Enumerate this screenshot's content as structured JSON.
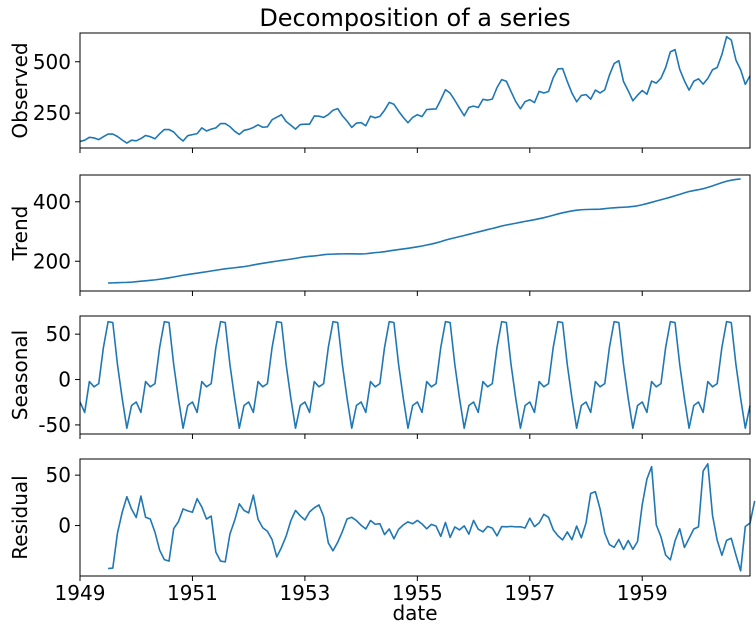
{
  "chart_data": {
    "type": "line",
    "title": "Decomposition of a series",
    "xlabel": "date",
    "x_start": "1949-01",
    "frequency": "monthly",
    "xlim": [
      "1949-01",
      "1960-12"
    ],
    "x_ticks": [
      "1949",
      "1951",
      "1953",
      "1955",
      "1957",
      "1959"
    ],
    "line_color": "#1f77b4",
    "grid": false,
    "panels": [
      {
        "ylabel": "Observed",
        "ylim": [
          80,
          640
        ],
        "yticks": [
          250,
          500
        ],
        "values": [
          112,
          118,
          132,
          129,
          121,
          135,
          148,
          148,
          136,
          119,
          104,
          118,
          115,
          126,
          141,
          135,
          125,
          149,
          170,
          170,
          158,
          133,
          114,
          140,
          145,
          150,
          178,
          163,
          172,
          178,
          199,
          199,
          184,
          162,
          146,
          166,
          171,
          180,
          193,
          181,
          183,
          218,
          230,
          242,
          209,
          191,
          172,
          194,
          196,
          196,
          236,
          235,
          229,
          243,
          264,
          272,
          237,
          211,
          180,
          201,
          204,
          188,
          235,
          227,
          234,
          264,
          302,
          293,
          259,
          229,
          203,
          229,
          242,
          233,
          267,
          269,
          270,
          315,
          364,
          347,
          312,
          274,
          237,
          278,
          284,
          277,
          317,
          313,
          318,
          374,
          413,
          405,
          355,
          306,
          271,
          306,
          315,
          301,
          356,
          348,
          355,
          422,
          465,
          467,
          404,
          347,
          305,
          336,
          340,
          318,
          362,
          348,
          363,
          435,
          491,
          505,
          404,
          359,
          310,
          337,
          360,
          342,
          406,
          396,
          420,
          472,
          548,
          559,
          463,
          407,
          362,
          405,
          417,
          391,
          419,
          461,
          472,
          535,
          622,
          606,
          508,
          461,
          390,
          432
        ]
      },
      {
        "ylabel": "Trend",
        "ylim": [
          100,
          490
        ],
        "yticks": [
          200,
          400
        ],
        "start_index": 6,
        "values": [
          126.8,
          127.3,
          127.9,
          128.6,
          129.0,
          129.8,
          131.3,
          133.1,
          134.4,
          135.9,
          137.4,
          139.5,
          141.9,
          144.3,
          147.0,
          150.0,
          152.9,
          155.2,
          157.7,
          160.0,
          162.4,
          164.8,
          167.3,
          169.8,
          172.3,
          174.5,
          176.5,
          178.2,
          179.9,
          181.9,
          184.5,
          187.5,
          190.5,
          193.2,
          195.7,
          198.0,
          200.4,
          202.7,
          205.0,
          207.1,
          209.7,
          212.6,
          215.0,
          216.6,
          217.9,
          219.8,
          222.2,
          223.6,
          224.0,
          224.5,
          224.8,
          225.0,
          224.9,
          224.6,
          224.5,
          225.2,
          227.1,
          229.0,
          230.3,
          232.3,
          234.8,
          237.1,
          239.3,
          241.3,
          243.6,
          246.0,
          248.5,
          251.3,
          254.6,
          257.8,
          261.6,
          266.1,
          271.1,
          275.3,
          279.0,
          282.8,
          286.5,
          290.6,
          294.6,
          298.6,
          302.4,
          306.5,
          310.2,
          314.1,
          318.6,
          321.9,
          324.8,
          327.8,
          330.9,
          334.0,
          336.8,
          339.8,
          343.0,
          346.5,
          350.4,
          354.8,
          359.0,
          362.8,
          366.3,
          369.2,
          371.7,
          373.2,
          374.0,
          374.4,
          374.7,
          375.2,
          376.8,
          378.6,
          379.8,
          380.8,
          381.6,
          382.6,
          384.2,
          386.5,
          390.0,
          393.9,
          398.2,
          402.5,
          406.9,
          411.0,
          415.4,
          420.3,
          425.0,
          429.8,
          434.5,
          437.7,
          440.5,
          443.9,
          448.4,
          453.5,
          458.9,
          464.4,
          469.0,
          472.5,
          475.1,
          476.8
        ]
      },
      {
        "ylabel": "Seasonal",
        "ylim": [
          -60,
          70
        ],
        "yticks": [
          -50,
          0,
          50
        ],
        "values": [
          -24.7,
          -36.2,
          -2.2,
          -8.0,
          -4.5,
          35.4,
          63.8,
          62.8,
          16.5,
          -20.6,
          -53.6,
          -28.6,
          -24.7,
          -36.2,
          -2.2,
          -8.0,
          -4.5,
          35.4,
          63.8,
          62.8,
          16.5,
          -20.6,
          -53.6,
          -28.6,
          -24.7,
          -36.2,
          -2.2,
          -8.0,
          -4.5,
          35.4,
          63.8,
          62.8,
          16.5,
          -20.6,
          -53.6,
          -28.6,
          -24.7,
          -36.2,
          -2.2,
          -8.0,
          -4.5,
          35.4,
          63.8,
          62.8,
          16.5,
          -20.6,
          -53.6,
          -28.6,
          -24.7,
          -36.2,
          -2.2,
          -8.0,
          -4.5,
          35.4,
          63.8,
          62.8,
          16.5,
          -20.6,
          -53.6,
          -28.6,
          -24.7,
          -36.2,
          -2.2,
          -8.0,
          -4.5,
          35.4,
          63.8,
          62.8,
          16.5,
          -20.6,
          -53.6,
          -28.6,
          -24.7,
          -36.2,
          -2.2,
          -8.0,
          -4.5,
          35.4,
          63.8,
          62.8,
          16.5,
          -20.6,
          -53.6,
          -28.6,
          -24.7,
          -36.2,
          -2.2,
          -8.0,
          -4.5,
          35.4,
          63.8,
          62.8,
          16.5,
          -20.6,
          -53.6,
          -28.6,
          -24.7,
          -36.2,
          -2.2,
          -8.0,
          -4.5,
          35.4,
          63.8,
          62.8,
          16.5,
          -20.6,
          -53.6,
          -28.6,
          -24.7,
          -36.2,
          -2.2,
          -8.0,
          -4.5,
          35.4,
          63.8,
          62.8,
          16.5,
          -20.6,
          -53.6,
          -28.6,
          -24.7,
          -36.2,
          -2.2,
          -8.0,
          -4.5,
          35.4,
          63.8,
          62.8,
          16.5,
          -20.6,
          -53.6,
          -28.6,
          -24.7,
          -36.2,
          -2.2,
          -8.0,
          -4.5,
          35.4,
          63.8,
          62.8,
          16.5,
          -20.6,
          -53.6,
          -28.6
        ]
      },
      {
        "ylabel": "Residual",
        "ylim": [
          -50,
          66
        ],
        "yticks": [
          0,
          50
        ],
        "start_index": 6,
        "values": [
          -42.6,
          -42.1,
          -7.4,
          13.0,
          28.6,
          16.4,
          8.0,
          29.3,
          8.3,
          6.5,
          -6.6,
          -24.4,
          -33.8,
          -35.3,
          -3.0,
          3.8,
          16.5,
          14.6,
          13.2,
          26.6,
          18.4,
          6.4,
          9.4,
          -26.3,
          -35.2,
          -36.0,
          -8.4,
          5.0,
          21.6,
          15.0,
          12.6,
          30.2,
          6.3,
          -2.2,
          -5.6,
          -14.0,
          -31.1,
          -21.7,
          -10.4,
          4.8,
          15.0,
          9.8,
          5.6,
          13.6,
          17.6,
          20.5,
          9.0,
          -17.2,
          -25.0,
          -16.6,
          -5.9,
          6.5,
          8.2,
          5.0,
          0.3,
          -3.4,
          5.0,
          1.3,
          1.9,
          -8.9,
          -3.4,
          -13.1,
          -3.7,
          0.7,
          3.7,
          1.8,
          5.1,
          1.6,
          -3.2,
          1.2,
          -0.6,
          -10.7,
          3.1,
          -11.7,
          -1.4,
          -4.3,
          -0.3,
          -8.5,
          5.1,
          -3.6,
          -6.2,
          -0.8,
          -2.5,
          -10.2,
          -1.0,
          -1.2,
          -0.8,
          -1.3,
          -1.2,
          -2.4,
          7.3,
          -1.0,
          2.7,
          11.2,
          8.2,
          -4.1,
          -10.1,
          -14.2,
          -6.3,
          -14.0,
          -0.5,
          -12.1,
          2.6,
          31.8,
          33.6,
          16.5,
          -7.5,
          -18.8,
          -21.6,
          -13.8,
          -23.7,
          -14.8,
          -23.5,
          -15.8,
          20.8,
          46.1,
          58.4,
          0.7,
          -11.2,
          -29.3,
          -34.0,
          -15.2,
          -3.1,
          -21.7,
          -12.7,
          -3.4,
          -1.3,
          54.1,
          61.2,
          10.1,
          -14.6,
          -29.5,
          -14.7,
          -12.6,
          -29.3,
          -44.9,
          -0.9,
          2.4,
          24.5
        ]
      }
    ]
  }
}
